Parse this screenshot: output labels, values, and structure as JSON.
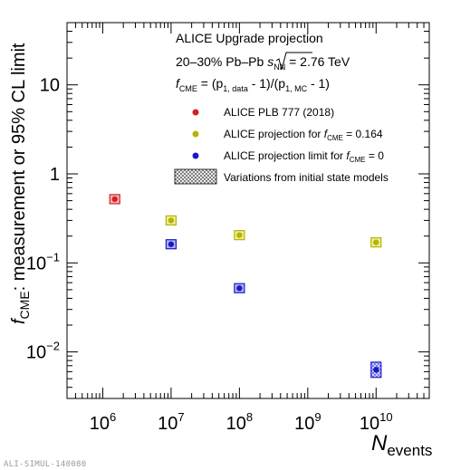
{
  "chart_data": {
    "type": "scatter",
    "xscale": "log",
    "yscale": "log",
    "xlim": [
      300000,
      60000000000
    ],
    "ylim": [
      0.003,
      50
    ],
    "xlabel": {
      "main": "N",
      "sub": "events"
    },
    "ylabel": {
      "main": "f",
      "sub": "CME",
      "rest": ": measurement or 95% CL limit"
    },
    "xticks": [
      {
        "value": 1000000,
        "base": "10",
        "exp": "6"
      },
      {
        "value": 10000000,
        "base": "10",
        "exp": "7"
      },
      {
        "value": 100000000,
        "base": "10",
        "exp": "8"
      },
      {
        "value": 1000000000,
        "base": "10",
        "exp": "9"
      },
      {
        "value": 10000000000,
        "base": "10",
        "exp": "10"
      }
    ],
    "yticks": [
      {
        "value": 0.01,
        "base": "10",
        "exp": "−2"
      },
      {
        "value": 0.1,
        "base": "10",
        "exp": "−1"
      },
      {
        "value": 1,
        "base": "1",
        "exp": ""
      },
      {
        "value": 10,
        "base": "10",
        "exp": ""
      }
    ],
    "header": {
      "line1": "ALICE Upgrade projection",
      "line2_pre": "20–30%  Pb–Pb ",
      "line2_s": "s",
      "line2_nn": "NN",
      "line2_post": " = 2.76 TeV",
      "line3_f": "f",
      "line3_cme": "CME",
      "line3_mid": " = (p",
      "line3_data": "1, data",
      "line3_mid2": " - 1)/(p",
      "line3_mc": "1, MC",
      "line3_end": " - 1)"
    },
    "series": [
      {
        "name": "ALICE PLB 777 (2018)",
        "color": "#d42020",
        "fill": "#f3b8b8",
        "points": [
          {
            "x": 1500000,
            "y": 0.52,
            "ylo": 0.48,
            "yhi": 0.58
          }
        ]
      },
      {
        "name": "ALICE projection for ",
        "name_f": "f",
        "name_sub": "CME",
        "name_post": " = 0.164",
        "color": "#b5b500",
        "fill": "#eded9c",
        "points": [
          {
            "x": 10000000,
            "y": 0.3,
            "ylo": 0.27,
            "yhi": 0.34
          },
          {
            "x": 100000000,
            "y": 0.205,
            "ylo": 0.185,
            "yhi": 0.23
          },
          {
            "x": 10000000000,
            "y": 0.17,
            "ylo": 0.154,
            "yhi": 0.188
          }
        ]
      },
      {
        "name": "ALICE projection limit for ",
        "name_f": "f",
        "name_sub": "CME",
        "name_post": " = 0",
        "color": "#1a1ac4",
        "fill": "#b3b3f0",
        "points": [
          {
            "x": 10000000,
            "y": 0.162,
            "ylo": 0.145,
            "yhi": 0.182
          },
          {
            "x": 100000000,
            "y": 0.052,
            "ylo": 0.047,
            "yhi": 0.058
          },
          {
            "x": 10000000000,
            "y": 0.0063,
            "ylo": 0.0052,
            "yhi": 0.0077
          }
        ]
      }
    ],
    "legend_band": {
      "label": "Variations from initial state models"
    },
    "legend_placement": "top-right"
  },
  "footer": "ALI-SIMUL-140080"
}
